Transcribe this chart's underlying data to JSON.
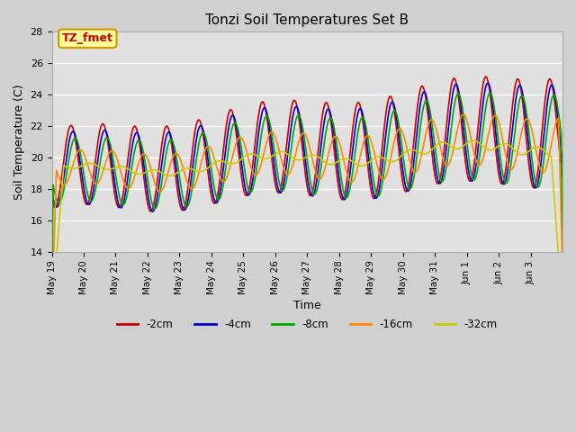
{
  "title": "Tonzi Soil Temperatures Set B",
  "xlabel": "Time",
  "ylabel": "Soil Temperature (C)",
  "ylim": [
    14,
    28
  ],
  "xlim_days": 16,
  "annotation_label": "TZ_fmet",
  "annotation_color": "#cc0000",
  "annotation_bg": "#ffff99",
  "annotation_border": "#cc9900",
  "fig_bg": "#d0d0d0",
  "plot_bg": "#e0e0e0",
  "grid_color": "#ffffff",
  "series": [
    {
      "label": "-2cm",
      "color": "#cc0000"
    },
    {
      "label": "-4cm",
      "color": "#0000cc"
    },
    {
      "label": "-8cm",
      "color": "#00aa00"
    },
    {
      "label": "-16cm",
      "color": "#ff8800"
    },
    {
      "label": "-32cm",
      "color": "#cccc00"
    }
  ],
  "tick_labels": [
    "May 19",
    "May 20",
    "May 21",
    "May 22",
    "May 23",
    "May 24",
    "May 25",
    "May 26",
    "May 27",
    "May 28",
    "May 29",
    "May 30",
    "May 31",
    "Jun 1",
    "Jun 2",
    "Jun 3"
  ],
  "yticks": [
    14,
    16,
    18,
    20,
    22,
    24,
    26,
    28
  ]
}
